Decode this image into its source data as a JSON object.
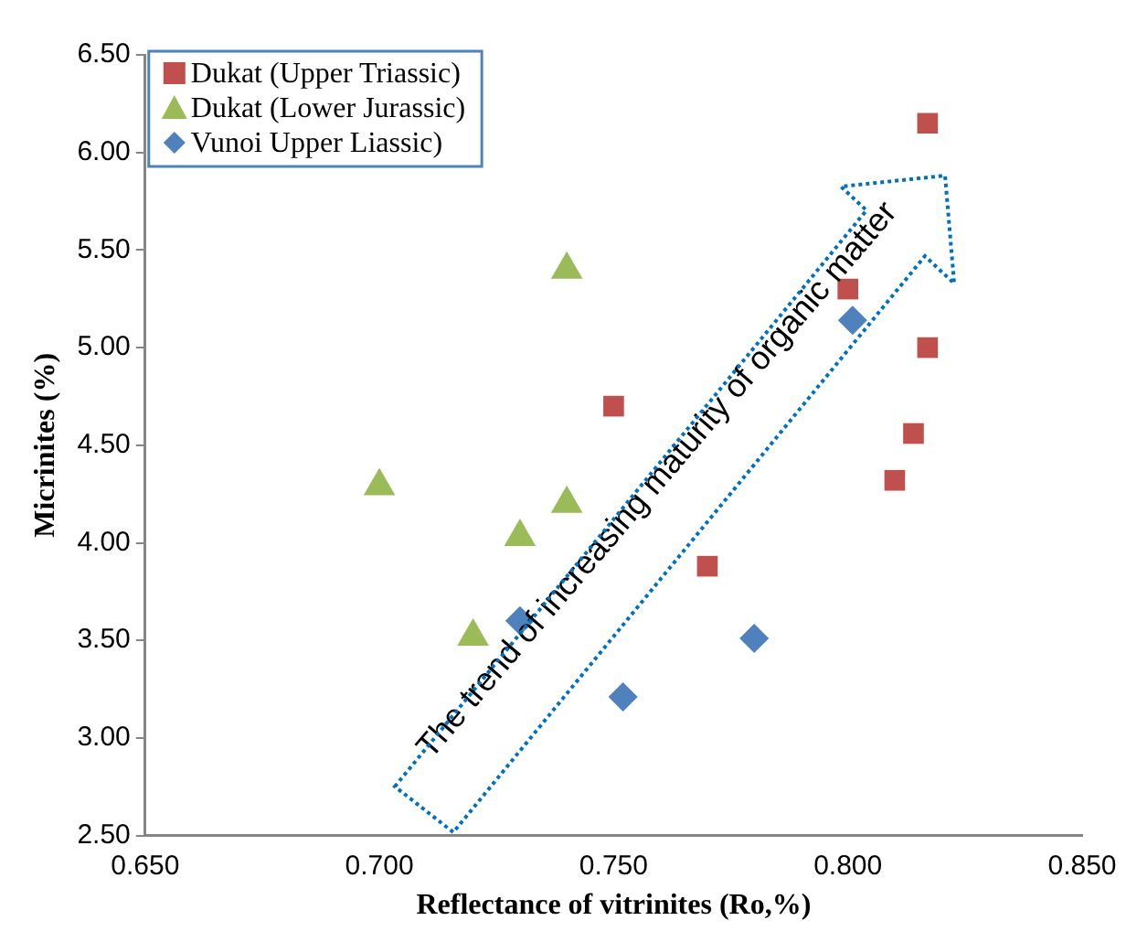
{
  "chart_data": {
    "type": "scatter",
    "xlabel": "Reflectance of vitrinites (Ro,%)",
    "ylabel": "Micrinites (%)",
    "annotations": [
      "The trend of increasing maturity of organic matter"
    ],
    "series": [
      {
        "name": "Dukat (Upper Triassic)",
        "color": "#c0504d",
        "marker": "square",
        "x": [
          0.817,
          0.8,
          0.817,
          0.814,
          0.81,
          0.75,
          0.77
        ],
        "values": [
          6.15,
          5.3,
          5.0,
          4.56,
          4.32,
          4.7,
          3.88
        ]
      },
      {
        "name": "Dukat (Lower Jurassic)",
        "color": "#9bbb59",
        "marker": "triangle",
        "x": [
          0.74,
          0.7,
          0.74,
          0.73,
          0.72
        ],
        "values": [
          5.4,
          4.29,
          4.2,
          4.03,
          3.52
        ]
      },
      {
        "name": "Vunoi Upper Liassic)",
        "color": "#4f81bd",
        "marker": "diamond",
        "x": [
          0.801,
          0.73,
          0.752,
          0.78
        ],
        "values": [
          5.14,
          3.6,
          3.21,
          3.51
        ]
      }
    ],
    "xlim": [
      0.65,
      0.85
    ],
    "xticks": [
      {
        "value": 0.65,
        "label": "0.650"
      },
      {
        "value": 0.7,
        "label": "0.700"
      },
      {
        "value": 0.75,
        "label": "0.750"
      },
      {
        "value": 0.8,
        "label": "0.800"
      },
      {
        "value": 0.85,
        "label": "0.850"
      }
    ],
    "ylim": [
      2.5,
      6.5
    ],
    "yticks": [
      {
        "value": 2.5,
        "label": "2.50"
      },
      {
        "value": 3,
        "label": "3.00"
      },
      {
        "value": 3.5,
        "label": "3.50"
      },
      {
        "value": 4,
        "label": "4.00"
      },
      {
        "value": 4.5,
        "label": "4.50"
      },
      {
        "value": 5,
        "label": "5.00"
      },
      {
        "value": 5.5,
        "label": "5.50"
      },
      {
        "value": 6,
        "label": "6.00"
      },
      {
        "value": 6.5,
        "label": "6.50"
      }
    ],
    "grid": false,
    "legend": "top left"
  }
}
